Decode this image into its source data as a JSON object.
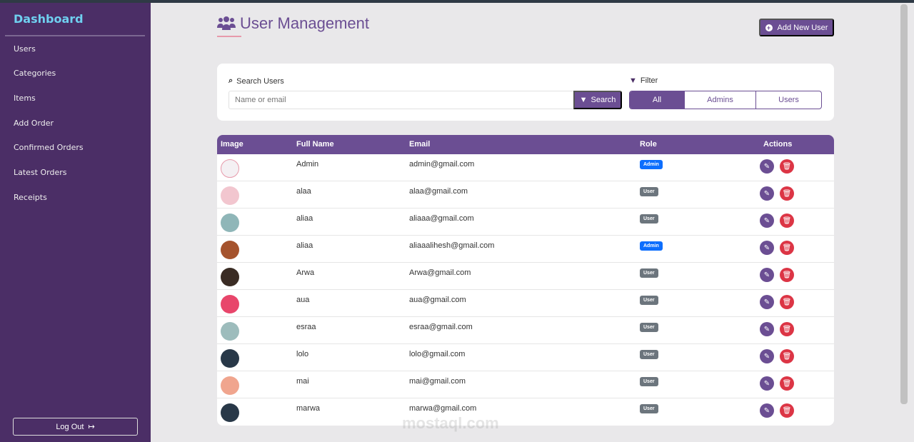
{
  "sidebar": {
    "brand": "Dashboard",
    "items": [
      {
        "label": "Users"
      },
      {
        "label": "Categories"
      },
      {
        "label": "Items"
      },
      {
        "label": "Add Order"
      },
      {
        "label": "Confirmed Orders"
      },
      {
        "label": "Latest Orders"
      },
      {
        "label": "Receipts"
      }
    ],
    "logout": "Log Out"
  },
  "header": {
    "title": "User Management",
    "add_button": "Add New User"
  },
  "search": {
    "label": "Search Users",
    "placeholder": "Name or email",
    "button": "Search"
  },
  "filter": {
    "label": "Filter",
    "options": [
      "All",
      "Admins",
      "Users"
    ],
    "selected": "All"
  },
  "table": {
    "columns": [
      "Image",
      "Full Name",
      "Email",
      "Role",
      "Actions"
    ],
    "rows": [
      {
        "name": "Admin",
        "email": "admin@gmail.com",
        "role": "Admin",
        "avatar_color": "#f4f0f3"
      },
      {
        "name": "alaa",
        "email": "alaa@gmail.com",
        "role": "User",
        "avatar_color": "#f2c6cf"
      },
      {
        "name": "aliaa",
        "email": "aliaaa@gmail.com",
        "role": "User",
        "avatar_color": "#8fb6b8"
      },
      {
        "name": "aliaa",
        "email": "aliaaalihesh@gmail.com",
        "role": "Admin",
        "avatar_color": "#a5532d"
      },
      {
        "name": "Arwa",
        "email": "Arwa@gmail.com",
        "role": "User",
        "avatar_color": "#3a2c24"
      },
      {
        "name": "aua",
        "email": "aua@gmail.com",
        "role": "User",
        "avatar_color": "#e8466b"
      },
      {
        "name": "esraa",
        "email": "esraa@gmail.com",
        "role": "User",
        "avatar_color": "#9dbcbc"
      },
      {
        "name": "lolo",
        "email": "lolo@gmail.com",
        "role": "User",
        "avatar_color": "#283848"
      },
      {
        "name": "mai",
        "email": "mai@gmail.com",
        "role": "User",
        "avatar_color": "#f0a58e"
      },
      {
        "name": "marwa",
        "email": "marwa@gmail.com",
        "role": "User",
        "avatar_color": "#283848"
      }
    ]
  },
  "colors": {
    "primary": "#6b4e93",
    "sidebar": "#4b2e66",
    "admin_badge": "#0d6efd",
    "user_badge": "#6c757d",
    "delete": "#dc3545"
  },
  "watermark": "mostaql.com"
}
